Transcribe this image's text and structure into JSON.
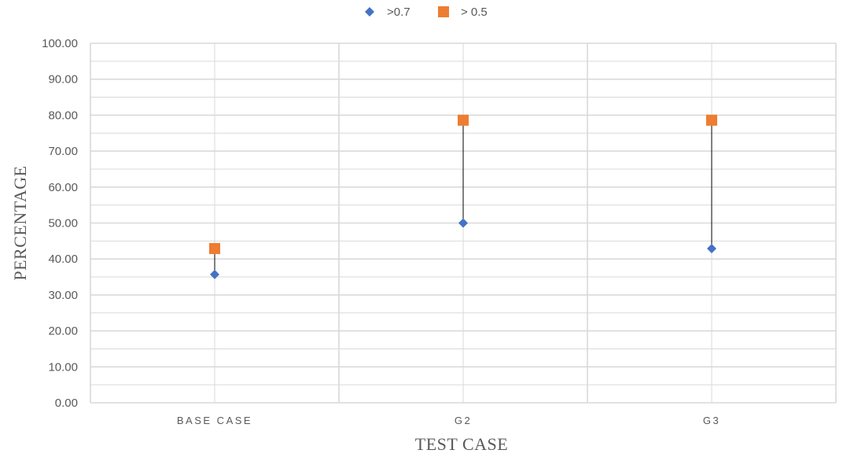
{
  "chart_data": {
    "type": "scatter",
    "categories": [
      "BASE CASE",
      "G2",
      "G3"
    ],
    "series": [
      {
        "name": ">0.7",
        "values": [
          35.7,
          50.0,
          42.9
        ],
        "marker": "diamond",
        "color": "#4472C4"
      },
      {
        "name": "> 0.5",
        "values": [
          42.9,
          78.6,
          78.6
        ],
        "marker": "square",
        "color": "#ED7D31"
      }
    ],
    "xlabel": "TEST CASE",
    "ylabel": "PERCENTAGE",
    "ylim": [
      0,
      100
    ],
    "yticks": [
      "0.00",
      "10.00",
      "20.00",
      "30.00",
      "40.00",
      "50.00",
      "60.00",
      "70.00",
      "80.00",
      "90.00",
      "100.00"
    ],
    "grid": true,
    "legend": "top-center",
    "connector_lines": true,
    "connector_color": "#000000",
    "grid_color": "#D9D9D9"
  }
}
